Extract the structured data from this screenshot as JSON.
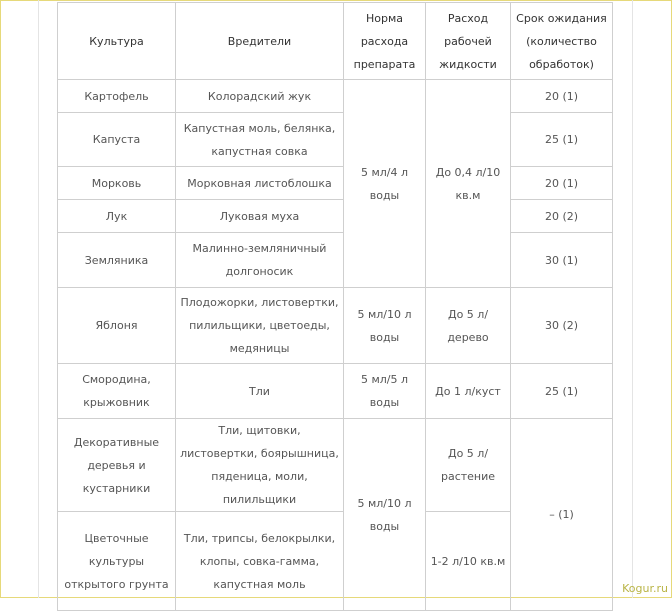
{
  "headers": [
    "Культура",
    "Вредители",
    "Норма расхода препарата",
    "Расход рабочей жидкости",
    "Срок ожидания (количество обработок)"
  ],
  "rows": [
    {
      "crop": "Картофель",
      "pests": "Колорадский жук",
      "wait": "20 (1)"
    },
    {
      "crop": "Капуста",
      "pests": "Капустная моль, белянка, капустная совка",
      "wait": "25 (1)"
    },
    {
      "crop": "Морковь",
      "pests": "Морковная листоблошка",
      "wait": "20 (1)"
    },
    {
      "crop": "Лук",
      "pests": "Луковая муха",
      "wait": "20 (2)"
    },
    {
      "crop": "Земляника",
      "pests": "Малинно-земляничный долгоносик",
      "wait": "30 (1)"
    },
    {
      "crop": "Яблоня",
      "pests": "Плодожорки, листовертки, пилильщики, цветоеды, медяницы",
      "norm": "5 мл/10 л воды",
      "liquid": "До 5 л/ дерево",
      "wait": "30 (2)"
    },
    {
      "crop": "Смородина, крыжовник",
      "pests": "Тли",
      "norm": "5 мл/5 л воды",
      "liquid": "До 1 л/куст",
      "wait": "25 (1)"
    },
    {
      "crop": "Декоративные деревья и кустарники",
      "pests": "Тли, щитовки, листовертки, боярышница, пяденица, моли, пилильщики",
      "liquid": "До 5 л/ растение"
    },
    {
      "crop": "Цветочные культуры открытого грунта",
      "pests": "Тли, трипсы, белокрылки, клопы, совка-гамма, капустная моль",
      "liquid": "1-2 л/10 кв.м"
    }
  ],
  "group1": {
    "norm": "5 мл/4 л воды",
    "liquid": "До 0,4 л/10 кв.м"
  },
  "group3": {
    "norm": "5 мл/10 л воды",
    "wait": "– (1)"
  },
  "watermark": "Kogur.ru"
}
